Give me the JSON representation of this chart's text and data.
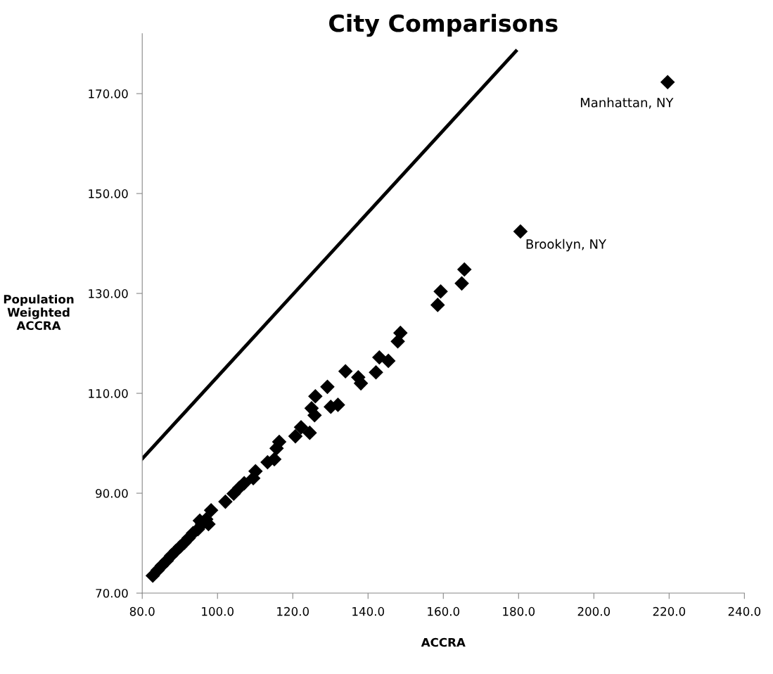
{
  "chart_data": {
    "type": "scatter",
    "title": "City Comparisons",
    "xlabel": "ACCRA",
    "ylabel": "Population\nWeighted\nACCRA",
    "xlim": [
      80,
      240
    ],
    "ylim": [
      70,
      182
    ],
    "xticks": [
      {
        "value": 80,
        "label": "80.0"
      },
      {
        "value": 100,
        "label": "100.0"
      },
      {
        "value": 120,
        "label": "120.0"
      },
      {
        "value": 140,
        "label": "140.0"
      },
      {
        "value": 160,
        "label": "160.0"
      },
      {
        "value": 180,
        "label": "180.0"
      },
      {
        "value": 200,
        "label": "200.0"
      },
      {
        "value": 220,
        "label": "220.0"
      },
      {
        "value": 240,
        "label": "240.0"
      }
    ],
    "yticks": [
      {
        "value": 70,
        "label": "70.00"
      },
      {
        "value": 90,
        "label": "90.00"
      },
      {
        "value": 110,
        "label": "110.00"
      },
      {
        "value": 130,
        "label": "130.00"
      },
      {
        "value": 150,
        "label": "150.00"
      },
      {
        "value": 170,
        "label": "170.00"
      }
    ],
    "grid": false,
    "legend": false,
    "series": [
      {
        "type": "line",
        "color": "#000000",
        "marker": "none",
        "line_style": "solid",
        "x": [
          80,
          179.3
        ],
        "values": [
          96.9,
          178.5
        ]
      },
      {
        "color": "#000000",
        "marker": "diamond",
        "x": [
          82.8,
          84.1,
          85.2,
          86.5,
          87.7,
          89.0,
          90.1,
          91.2,
          92.3,
          93.5,
          94.8,
          95.3,
          95.9,
          97.0,
          97.6,
          98.3,
          102.1,
          104.3,
          105.8,
          107.1,
          109.5,
          110.1,
          113.3,
          115.1,
          115.7,
          116.4,
          120.7,
          122.2,
          124.5,
          125.0,
          125.8,
          126.0,
          129.2,
          130.1,
          132.0,
          134.0,
          137.4,
          138.1,
          142.1,
          143.0,
          145.4,
          147.9,
          148.6,
          158.5,
          159.3,
          164.9,
          165.6,
          180.5,
          219.6
        ],
        "values": [
          73.5,
          74.6,
          75.5,
          76.5,
          77.5,
          78.5,
          79.3,
          80.1,
          81.0,
          82.0,
          82.8,
          84.5,
          83.8,
          84.8,
          83.8,
          86.6,
          88.3,
          89.9,
          91.1,
          92.0,
          93.0,
          94.4,
          96.2,
          96.8,
          99.0,
          100.3,
          101.4,
          103.2,
          102.1,
          107.0,
          105.6,
          109.4,
          111.3,
          107.3,
          107.7,
          114.4,
          113.2,
          112.0,
          114.2,
          117.2,
          116.5,
          120.4,
          122.1,
          127.7,
          130.4,
          132.0,
          134.8,
          142.4,
          172.3
        ]
      }
    ],
    "annotations": [
      {
        "text": "Manhattan, NY",
        "x": 219.6,
        "y": 172.3
      },
      {
        "text": "Brooklyn, NY",
        "x": 180.5,
        "y": 142.4
      }
    ]
  }
}
